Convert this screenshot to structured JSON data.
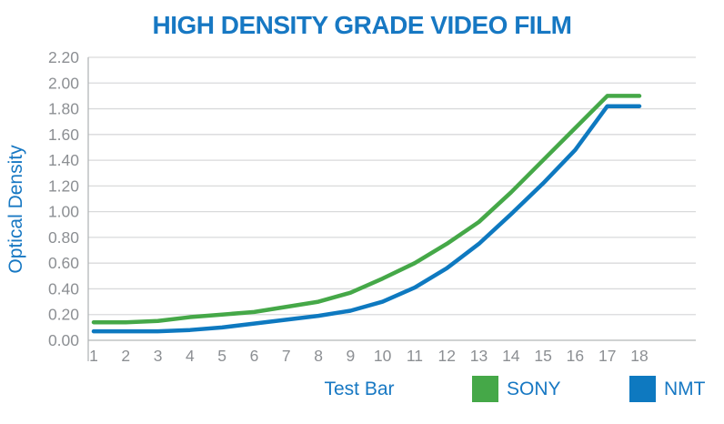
{
  "title": "HIGH DENSITY GRADE VIDEO FILM",
  "colors": {
    "accent_blue": "#1778c3",
    "sony_green": "#45a848",
    "nmt_blue": "#0e79c0",
    "tick_gray": "#8c8f93",
    "grid_gray": "#d9dadb",
    "axis_gray": "#b3b6b8"
  },
  "chart_data": {
    "type": "line",
    "title": "HIGH DENSITY GRADE VIDEO FILM",
    "xlabel": "Test Bar",
    "ylabel": "Optical Density",
    "categories": [
      "1",
      "2",
      "3",
      "4",
      "5",
      "6",
      "7",
      "8",
      "9",
      "10",
      "11",
      "12",
      "13",
      "14",
      "15",
      "16",
      "17",
      "18"
    ],
    "series": [
      {
        "name": "SONY",
        "color": "#45a848",
        "values": [
          0.14,
          0.14,
          0.15,
          0.18,
          0.2,
          0.22,
          0.26,
          0.3,
          0.37,
          0.48,
          0.6,
          0.75,
          0.92,
          1.15,
          1.4,
          1.65,
          1.9,
          1.9
        ]
      },
      {
        "name": "NMT",
        "color": "#0e79c0",
        "values": [
          0.07,
          0.07,
          0.07,
          0.08,
          0.1,
          0.13,
          0.16,
          0.19,
          0.23,
          0.3,
          0.41,
          0.56,
          0.75,
          0.98,
          1.22,
          1.48,
          1.82,
          1.82
        ]
      }
    ],
    "ylim": [
      0.0,
      2.2
    ],
    "ytick_step": 0.2,
    "ytick_labels": [
      "0.00",
      "0.20",
      "0.40",
      "0.60",
      "0.80",
      "1.00",
      "1.20",
      "1.40",
      "1.60",
      "1.80",
      "2.00",
      "2.20"
    ],
    "grid": "horizontal",
    "legend_position": "bottom-right"
  }
}
